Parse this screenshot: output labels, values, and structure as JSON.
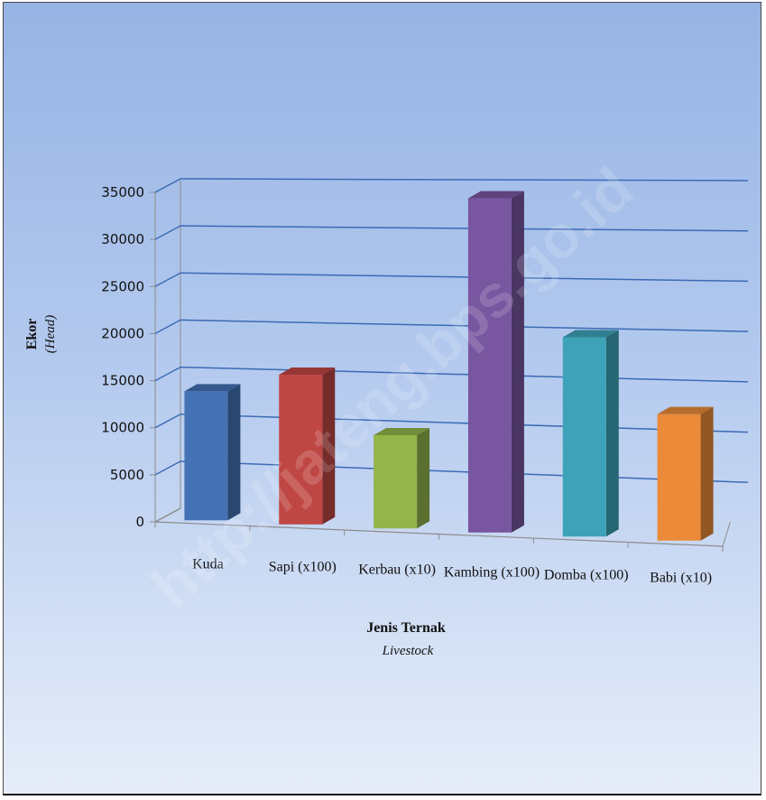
{
  "chart_data": {
    "type": "bar",
    "categories": [
      "Kuda",
      "Sapi (x100)",
      "Kerbau (x10)",
      "Kambing (x100)",
      "Domba (x100)",
      "Babi (x10)"
    ],
    "values": [
      14000,
      16000,
      10000,
      34500,
      20500,
      13000
    ],
    "colors": [
      "#4472b5",
      "#bf4743",
      "#93b54a",
      "#7856a0",
      "#3ea3b8",
      "#eb8a38"
    ],
    "yticks": [
      0,
      5000,
      10000,
      15000,
      20000,
      25000,
      30000,
      35000
    ],
    "ylim": [
      0,
      35000
    ],
    "ylabel": "Ekor",
    "ylabel_sub": "(Head)",
    "xlabel": "Jenis Ternak",
    "xlabel_sub": "Livestock",
    "grid": true,
    "style": "3d-column"
  },
  "watermark": "http://jateng.bps.go.id"
}
